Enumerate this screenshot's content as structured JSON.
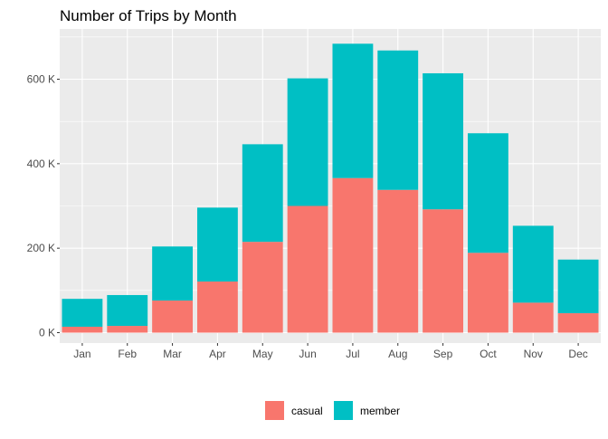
{
  "chart_data": {
    "type": "bar",
    "stacked": true,
    "title": "Number of Trips by Month",
    "xlabel": "",
    "ylabel": "",
    "categories": [
      "Jan",
      "Feb",
      "Mar",
      "Apr",
      "May",
      "Jun",
      "Jul",
      "Aug",
      "Sep",
      "Oct",
      "Nov",
      "Dec"
    ],
    "series": [
      {
        "name": "casual",
        "color": "#F8766D",
        "values": [
          14000,
          16000,
          76000,
          121000,
          215000,
          300000,
          366000,
          338000,
          292000,
          189000,
          71000,
          46000
        ]
      },
      {
        "name": "member",
        "color": "#00BFC4",
        "values": [
          66000,
          73000,
          128000,
          175000,
          231000,
          302000,
          318000,
          330000,
          322000,
          283000,
          182000,
          127000
        ]
      }
    ],
    "ylim": [
      0,
      715000
    ],
    "yticks": [
      0,
      200000,
      400000,
      600000
    ],
    "ytick_labels": [
      "0 K",
      "200 K",
      "400 K",
      "600 K"
    ],
    "grid": true,
    "background": "#EBEBEB",
    "legend_position": "bottom"
  }
}
